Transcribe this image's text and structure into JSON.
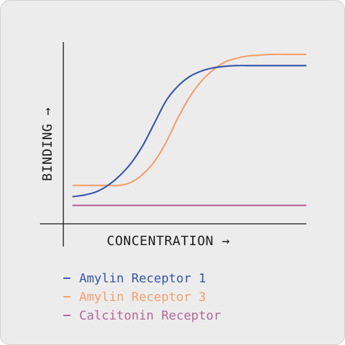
{
  "chart_data": {
    "type": "line",
    "xlabel": "CONCENTRATION →",
    "ylabel": "BINDING →",
    "x": [
      0,
      0.05,
      0.1,
      0.15,
      0.2,
      0.25,
      0.3,
      0.35,
      0.4,
      0.45,
      0.5,
      0.55,
      0.6,
      0.65,
      0.7,
      0.75,
      0.8,
      0.85,
      0.9,
      0.95,
      1.0
    ],
    "xlim": [
      0,
      1
    ],
    "ylim": [
      0,
      1
    ],
    "grid": false,
    "legend_position": "bottom-left",
    "series": [
      {
        "name": "Amylin Receptor 1",
        "color": "#3556a8",
        "values": [
          0.11,
          0.12,
          0.14,
          0.18,
          0.24,
          0.32,
          0.43,
          0.57,
          0.71,
          0.8,
          0.86,
          0.895,
          0.915,
          0.925,
          0.93,
          0.93,
          0.93,
          0.93,
          0.93,
          0.93,
          0.93
        ]
      },
      {
        "name": "Amylin Receptor 3",
        "color": "#f4a06b",
        "values": [
          0.18,
          0.18,
          0.18,
          0.18,
          0.18,
          0.2,
          0.25,
          0.33,
          0.45,
          0.6,
          0.73,
          0.83,
          0.9,
          0.95,
          0.975,
          0.99,
          0.995,
          1.0,
          1.0,
          1.0,
          1.0
        ]
      },
      {
        "name": "Calcitonin Receptor",
        "color": "#b4679a",
        "values": [
          0.055,
          0.055,
          0.055,
          0.055,
          0.055,
          0.055,
          0.055,
          0.055,
          0.055,
          0.055,
          0.055,
          0.055,
          0.055,
          0.055,
          0.055,
          0.055,
          0.055,
          0.055,
          0.055,
          0.055,
          0.055
        ]
      }
    ]
  }
}
